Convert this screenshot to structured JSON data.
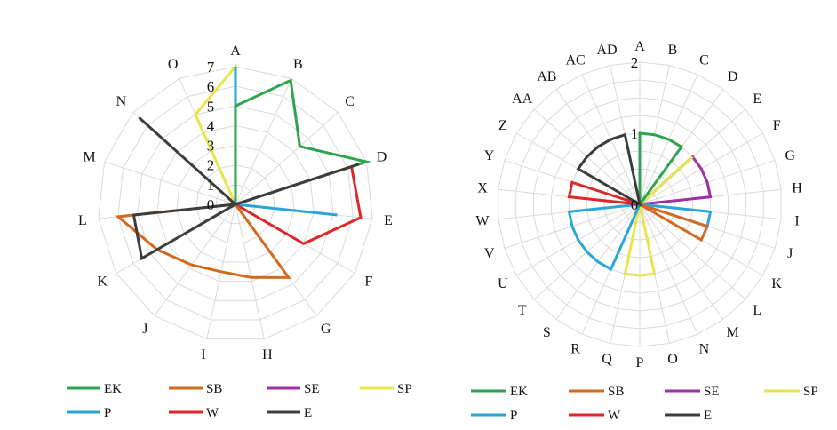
{
  "chart_data": [
    {
      "type": "radar",
      "title": "",
      "axes": [
        "A",
        "B",
        "C",
        "D",
        "E",
        "F",
        "G",
        "H",
        "I",
        "J",
        "K",
        "L",
        "M",
        "N",
        "O"
      ],
      "rrange": [
        0,
        7
      ],
      "ticks": [
        "0",
        "1",
        "2",
        "3",
        "4",
        "5",
        "6",
        "7"
      ],
      "tick_values": [
        0,
        1,
        2,
        3,
        4,
        5,
        6,
        7
      ],
      "grid": true,
      "legend_position": "bottom",
      "legend": [
        "EK",
        "SB",
        "SE",
        "SP",
        "P",
        "W",
        "E"
      ],
      "series": [
        {
          "name": "EK",
          "color": "#2ea44f",
          "values": [
            5,
            6.9,
            4.4,
            7,
            0,
            0,
            0,
            0,
            0,
            0,
            0,
            0,
            0,
            0,
            0
          ]
        },
        {
          "name": "SB",
          "color": "#d2691e",
          "values": [
            0,
            0,
            0,
            0,
            0,
            0,
            4.6,
            3.8,
            3.5,
            3.8,
            4.6,
            6.0,
            0,
            0,
            0
          ]
        },
        {
          "name": "SE",
          "color": "#9b30a8",
          "values": [
            0,
            0,
            0,
            0,
            0,
            0,
            0,
            0,
            0,
            0,
            0,
            0,
            0,
            0,
            0
          ]
        },
        {
          "name": "SP",
          "color": "#e8e44a",
          "values": [
            7,
            0,
            0,
            0,
            0,
            0,
            0,
            0,
            0,
            0,
            0,
            0,
            0,
            0,
            5.0
          ]
        },
        {
          "name": "P",
          "color": "#2aa5d8",
          "values": [
            7,
            0,
            0,
            0,
            5.2,
            0,
            0,
            0,
            0,
            0,
            0,
            0,
            0,
            0,
            0
          ]
        },
        {
          "name": "W",
          "color": "#e0262a",
          "values": [
            0,
            0,
            0,
            6.2,
            6.4,
            4.0,
            0,
            0,
            0,
            0,
            0,
            0,
            0,
            0,
            0
          ]
        },
        {
          "name": "E",
          "color": "#3c3c3c",
          "values": [
            0,
            0,
            0,
            6.6,
            0,
            0,
            0,
            0,
            0,
            0,
            5.5,
            5.2,
            0,
            6.6,
            0
          ]
        }
      ]
    },
    {
      "type": "radar",
      "title": "",
      "axes": [
        "A",
        "B",
        "C",
        "D",
        "E",
        "F",
        "G",
        "H",
        "I",
        "J",
        "K",
        "L",
        "M",
        "N",
        "O",
        "P",
        "Q",
        "R",
        "S",
        "T",
        "U",
        "V",
        "W",
        "X",
        "Y",
        "Z",
        "AA",
        "AB",
        "AC",
        "AD"
      ],
      "rrange": [
        0,
        2
      ],
      "ticks": [
        "0",
        "1",
        "2"
      ],
      "tick_values": [
        0,
        1,
        2
      ],
      "grid": true,
      "legend_position": "bottom",
      "legend": [
        "EK",
        "SB",
        "SE",
        "SP",
        "P",
        "W",
        "E"
      ],
      "series": [
        {
          "name": "EK",
          "color": "#2ea44f",
          "values": [
            1,
            1,
            1,
            1,
            0,
            0,
            0,
            0,
            0,
            0,
            0,
            0,
            0,
            0,
            0,
            0,
            0,
            0,
            0,
            0,
            0,
            0,
            0,
            0,
            0,
            0,
            0,
            0,
            0,
            0
          ]
        },
        {
          "name": "SB",
          "color": "#d2691e",
          "values": [
            0,
            0,
            0,
            0,
            0,
            0,
            0,
            0,
            0,
            1,
            1,
            0,
            0,
            0,
            0,
            0,
            0,
            0,
            0,
            0,
            0,
            0,
            0,
            0,
            0,
            0,
            0,
            0,
            0,
            0
          ]
        },
        {
          "name": "SE",
          "color": "#9b30a8",
          "values": [
            0,
            0,
            0,
            0,
            1,
            1,
            1,
            1,
            0,
            0,
            0,
            0,
            0,
            0,
            0,
            0,
            0,
            0,
            0,
            0,
            0,
            0,
            0,
            0,
            0,
            0,
            0,
            0,
            0,
            0
          ]
        },
        {
          "name": "SP",
          "color": "#e8e44a",
          "values": [
            0,
            0,
            0,
            0,
            1,
            0,
            0,
            0,
            0,
            0,
            0,
            0,
            0,
            0,
            1,
            1,
            1,
            0,
            0,
            0,
            0,
            0,
            0,
            0,
            0,
            0,
            0,
            0,
            0,
            0
          ]
        },
        {
          "name": "P",
          "color": "#2aa5d8",
          "values": [
            0,
            0,
            0,
            0,
            0,
            0,
            0,
            0,
            1,
            1,
            0,
            0,
            0,
            0,
            0,
            0,
            0,
            1,
            1,
            1,
            1,
            1,
            1,
            0,
            0,
            0,
            0,
            0,
            0,
            0
          ]
        },
        {
          "name": "W",
          "color": "#e0262a",
          "values": [
            0,
            0,
            0,
            0,
            0,
            0,
            0,
            0,
            0,
            0,
            0,
            0,
            0,
            0,
            0,
            0,
            0,
            0,
            0,
            0,
            0,
            0,
            0,
            1,
            1,
            0,
            0,
            0,
            0,
            0
          ]
        },
        {
          "name": "E",
          "color": "#3c3c3c",
          "values": [
            0,
            0,
            0,
            0,
            0,
            0,
            0,
            0,
            0,
            0,
            0,
            0,
            0,
            0,
            0,
            0,
            0,
            0,
            0,
            0,
            0,
            0,
            0,
            0,
            0,
            1,
            1,
            1,
            1,
            1
          ]
        }
      ]
    }
  ]
}
